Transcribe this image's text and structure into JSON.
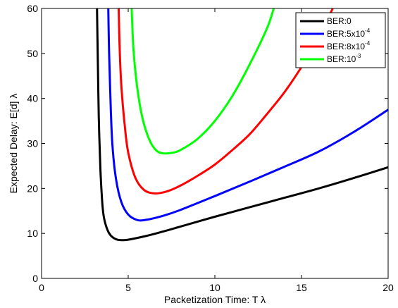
{
  "chart_data": {
    "type": "line",
    "xlabel": "Packetization Time: T λ",
    "ylabel": "Expected Delay: E[d] λ",
    "xlim": [
      0,
      20
    ],
    "ylim": [
      0,
      60
    ],
    "xticks": [
      0,
      5,
      10,
      15,
      20
    ],
    "yticks": [
      0,
      10,
      20,
      30,
      40,
      50,
      60
    ],
    "grid": false,
    "legend_position": "top-right",
    "series": [
      {
        "name": "BER:0",
        "name_base": "BER:0",
        "name_exp": "",
        "color": "#000000",
        "points": [
          [
            3.2,
            60
          ],
          [
            3.25,
            48
          ],
          [
            3.3,
            36
          ],
          [
            3.4,
            24
          ],
          [
            3.5,
            17
          ],
          [
            3.6,
            13.5
          ],
          [
            3.8,
            10.8
          ],
          [
            4.0,
            9.5
          ],
          [
            4.3,
            8.7
          ],
          [
            4.6,
            8.5
          ],
          [
            5.0,
            8.6
          ],
          [
            6,
            9.4
          ],
          [
            7,
            10.4
          ],
          [
            8,
            11.5
          ],
          [
            10,
            13.7
          ],
          [
            12,
            15.8
          ],
          [
            14,
            17.9
          ],
          [
            16,
            20.0
          ],
          [
            18,
            22.3
          ],
          [
            20,
            24.7
          ]
        ]
      },
      {
        "name": "BER:5x10^-4",
        "name_base": "BER:5x10",
        "name_exp": "-4",
        "color": "#0000ff",
        "points": [
          [
            3.85,
            60
          ],
          [
            3.9,
            50
          ],
          [
            4.0,
            37
          ],
          [
            4.1,
            29
          ],
          [
            4.3,
            22
          ],
          [
            4.6,
            17
          ],
          [
            5.0,
            14.2
          ],
          [
            5.5,
            13.0
          ],
          [
            6.0,
            13.0
          ],
          [
            7,
            13.9
          ],
          [
            8,
            15.2
          ],
          [
            10,
            18.3
          ],
          [
            12,
            21.5
          ],
          [
            14,
            24.8
          ],
          [
            16,
            28.2
          ],
          [
            18,
            32.5
          ],
          [
            20,
            37.5
          ]
        ]
      },
      {
        "name": "BER:8x10^-4",
        "name_base": "BER:8x10",
        "name_exp": "-4",
        "color": "#ff0000",
        "points": [
          [
            4.45,
            60
          ],
          [
            4.5,
            52
          ],
          [
            4.6,
            43
          ],
          [
            4.8,
            34
          ],
          [
            5.0,
            28
          ],
          [
            5.4,
            22.5
          ],
          [
            5.9,
            19.7
          ],
          [
            6.5,
            18.9
          ],
          [
            7.2,
            19.3
          ],
          [
            8,
            20.6
          ],
          [
            9,
            22.8
          ],
          [
            10,
            25.3
          ],
          [
            11,
            28.5
          ],
          [
            12,
            32.0
          ],
          [
            13,
            36.5
          ],
          [
            14,
            41.3
          ],
          [
            15,
            47.0
          ],
          [
            16,
            53.5
          ],
          [
            16.8,
            60
          ]
        ]
      },
      {
        "name": "BER:10^-3",
        "name_base": "BER:10",
        "name_exp": "-3",
        "color": "#00ff00",
        "points": [
          [
            5.2,
            60
          ],
          [
            5.3,
            51
          ],
          [
            5.5,
            43
          ],
          [
            5.8,
            36
          ],
          [
            6.2,
            31
          ],
          [
            6.6,
            28.5
          ],
          [
            7.0,
            27.8
          ],
          [
            7.5,
            27.9
          ],
          [
            8,
            28.5
          ],
          [
            9,
            31.0
          ],
          [
            10,
            35.0
          ],
          [
            11,
            40.5
          ],
          [
            12,
            47.5
          ],
          [
            13,
            55.5
          ],
          [
            13.4,
            60
          ]
        ]
      }
    ]
  }
}
